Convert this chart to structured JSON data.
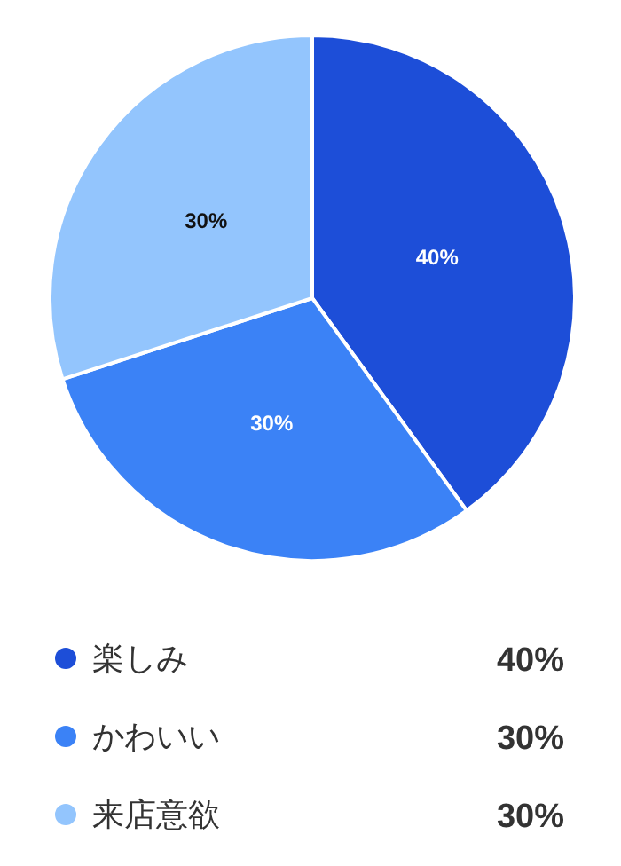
{
  "chart_data": {
    "type": "pie",
    "categories": [
      "楽しみ",
      "かわいい",
      "来店意欲"
    ],
    "values": [
      40,
      30,
      30
    ],
    "colors": [
      "#1d4ed8",
      "#3b82f6",
      "#93c5fd"
    ],
    "value_labels": [
      "40%",
      "30%",
      "30%"
    ],
    "legend": "bottom"
  }
}
